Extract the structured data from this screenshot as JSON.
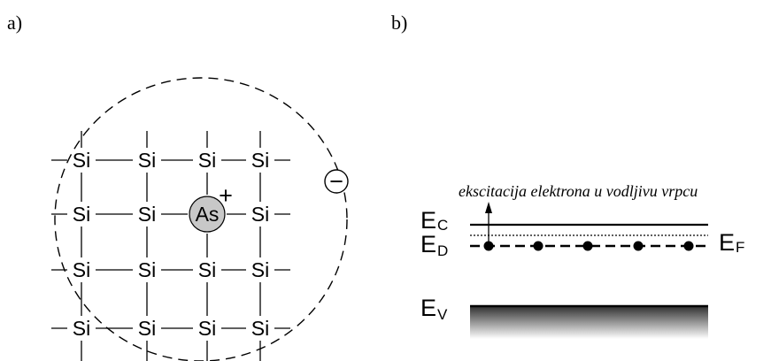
{
  "panel_a": {
    "label": "a)",
    "host_atom": "Si",
    "dopant_atom": "As",
    "dopant_charge": "+",
    "electron_charge": "−"
  },
  "panel_b": {
    "label": "b)",
    "annotation": "ekscitacija elektrona u vodljivu vrpcu",
    "levels": {
      "conduction": {
        "letter": "E",
        "sub": "C"
      },
      "donor": {
        "letter": "E",
        "sub": "D"
      },
      "fermi": {
        "letter": "E",
        "sub": "F"
      },
      "valence": {
        "letter": "E",
        "sub": "V"
      }
    }
  },
  "colors": {
    "dopant_fill": "#c8c8c8",
    "band_top": "#2a2a2a",
    "band_bottom": "#ffffff"
  }
}
